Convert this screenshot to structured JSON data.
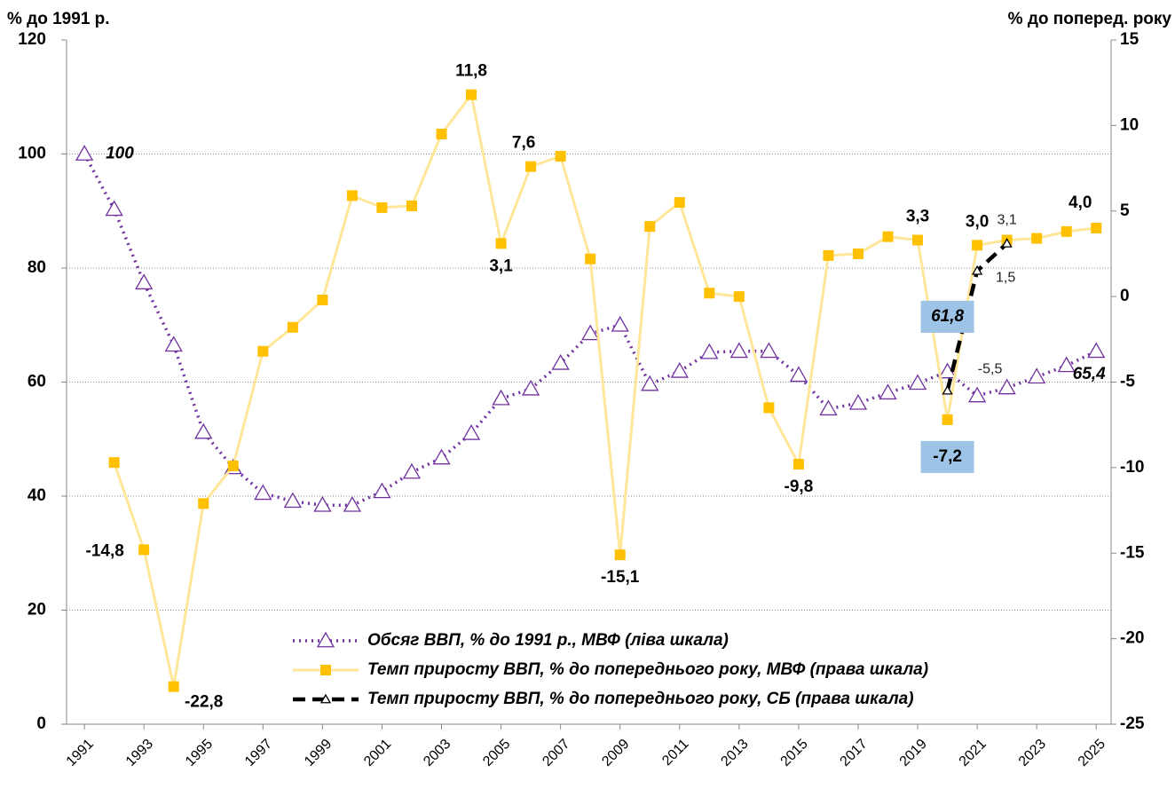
{
  "chart_data": {
    "type": "line",
    "y_label": "% до 1991 р.",
    "y2_label": "% до поперед. року",
    "x": [
      1991,
      1992,
      1993,
      1994,
      1995,
      1996,
      1997,
      1998,
      1999,
      2000,
      2001,
      2002,
      2003,
      2004,
      2005,
      2006,
      2007,
      2008,
      2009,
      2010,
      2011,
      2012,
      2013,
      2014,
      2015,
      2016,
      2017,
      2018,
      2019,
      2020,
      2021,
      2022,
      2023,
      2024,
      2025
    ],
    "xlim": [
      1990.4,
      2025.5
    ],
    "xticks": [
      1991,
      1993,
      1995,
      1997,
      1999,
      2001,
      2003,
      2005,
      2007,
      2009,
      2011,
      2013,
      2015,
      2017,
      2019,
      2021,
      2023,
      2025
    ],
    "ylim": [
      0,
      120
    ],
    "yticks": [
      0,
      20,
      40,
      60,
      80,
      100,
      120
    ],
    "y2lim": [
      -25,
      15
    ],
    "y2ticks": [
      -25,
      -20,
      -15,
      -10,
      -5,
      0,
      5,
      10,
      15
    ],
    "grid": true,
    "series": [
      {
        "name": "Обсяг ВВП, % до 1991 р., МВФ (ліва шкала)",
        "color": "#7030a0",
        "style": "dotted",
        "marker": "triangle",
        "values": [
          100,
          90.3,
          77.4,
          66.5,
          51.2,
          45,
          40.5,
          39.1,
          38.4,
          38.4,
          40.8,
          44.2,
          46.7,
          51,
          57.1,
          58.8,
          63.3,
          68.5,
          70,
          59.6,
          61.9,
          65.2,
          65.4,
          65.4,
          61.2,
          55.3,
          56.3,
          58.1,
          59.8,
          61.8,
          57.6,
          59,
          60.9,
          62.9,
          65.4
        ],
        "value_labels": [
          "100",
          null,
          null,
          null,
          null,
          null,
          null,
          null,
          null,
          null,
          null,
          null,
          null,
          null,
          null,
          null,
          null,
          null,
          null,
          null,
          null,
          null,
          null,
          null,
          null,
          null,
          null,
          null,
          null,
          "61,8",
          null,
          null,
          null,
          null,
          "65,4"
        ]
      },
      {
        "name": "Темп приросту ВВП, % до попереднього року, МВФ (права шкала)",
        "color": "#ffc000",
        "line_color": "#ffe699",
        "style": "solid",
        "marker": "square",
        "axis": "y2",
        "values": [
          null,
          -9.7,
          -14.8,
          -22.8,
          -12.1,
          -9.9,
          -3.2,
          -1.8,
          -0.2,
          5.9,
          5.2,
          5.3,
          9.5,
          11.8,
          3.1,
          7.6,
          8.2,
          2.2,
          -15.1,
          4.1,
          5.5,
          0.2,
          0,
          -6.5,
          -9.8,
          2.4,
          2.5,
          3.5,
          3.3,
          -7.2,
          3,
          3.3,
          3.4,
          3.8,
          4
        ],
        "value_labels": [
          null,
          null,
          "-14,8",
          "-22,8",
          null,
          null,
          null,
          null,
          null,
          null,
          null,
          null,
          null,
          "11,8",
          "3,1",
          "7,6",
          null,
          null,
          "-15,1",
          null,
          null,
          null,
          null,
          null,
          "-9,8",
          null,
          null,
          null,
          "3,3",
          "-7,2",
          "3,0",
          null,
          null,
          null,
          "4,0"
        ]
      },
      {
        "name": "Темп приросту ВВП, % до попереднього року, СБ (права шкала)",
        "color": "#000000",
        "style": "dashed",
        "marker": "triangle",
        "axis": "y2",
        "values": [
          null,
          null,
          null,
          null,
          null,
          null,
          null,
          null,
          null,
          null,
          null,
          null,
          null,
          null,
          null,
          null,
          null,
          null,
          null,
          null,
          null,
          null,
          null,
          null,
          null,
          null,
          null,
          null,
          null,
          -5.5,
          1.5,
          3.1,
          null,
          null,
          null
        ],
        "value_labels": [
          null,
          null,
          null,
          null,
          null,
          null,
          null,
          null,
          null,
          null,
          null,
          null,
          null,
          null,
          null,
          null,
          null,
          null,
          null,
          null,
          null,
          null,
          null,
          null,
          null,
          null,
          null,
          null,
          null,
          "-5,5",
          "1,5",
          "3,1",
          null,
          null,
          null
        ]
      }
    ]
  }
}
